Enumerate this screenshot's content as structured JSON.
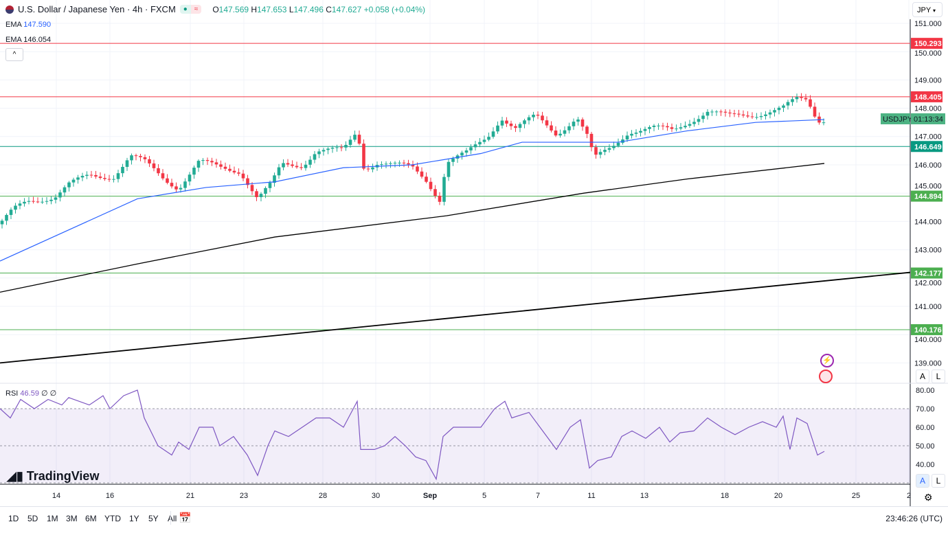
{
  "header": {
    "title": "U.S. Dollar / Japanese Yen · 4h · FXCM",
    "open_label": "O",
    "open": "147.569",
    "high_label": "H",
    "high": "147.653",
    "low_label": "L",
    "low": "147.496",
    "close_label": "C",
    "close": "147.627",
    "change": "+0.058 (+0.04%)",
    "badge_icon": "≈"
  },
  "indicators": [
    {
      "label": "EMA",
      "value": "147.590",
      "color": "#2962ff"
    },
    {
      "label": "EMA",
      "value": "146.054",
      "color": "#000000"
    }
  ],
  "currency_select": "JPY",
  "price_axis": {
    "ticks": [
      "151.000",
      "150.000",
      "149.000",
      "148.000",
      "147.000",
      "146.000",
      "145.000",
      "144.000",
      "143.000",
      "142.000",
      "141.000",
      "140.000",
      "139.000"
    ],
    "tick_values": [
      151,
      150,
      149,
      148,
      147,
      146,
      145,
      144,
      143,
      142,
      141,
      140,
      139
    ]
  },
  "levels": [
    {
      "value": 150.293,
      "label": "150.293",
      "color": "#f23645"
    },
    {
      "value": 148.405,
      "label": "148.405",
      "color": "#f23645"
    },
    {
      "value": 146.649,
      "label": "146.649",
      "color": "#089981"
    },
    {
      "value": 144.894,
      "label": "144.894",
      "color": "#4caf50"
    },
    {
      "value": 142.177,
      "label": "142.177",
      "color": "#4caf50"
    },
    {
      "value": 140.176,
      "label": "140.176",
      "color": "#4caf50"
    }
  ],
  "symbol_label": {
    "symbol": "USDJPY",
    "countdown": "01:13:34"
  },
  "price_path": [
    [
      0,
      143.9
    ],
    [
      20,
      144.4
    ],
    [
      40,
      144.7
    ],
    [
      80,
      144.9
    ],
    [
      100,
      145.3
    ],
    [
      130,
      145.6
    ],
    [
      165,
      145.6
    ],
    [
      190,
      146.3
    ],
    [
      210,
      146.1
    ],
    [
      240,
      145.5
    ],
    [
      260,
      145.2
    ],
    [
      290,
      146.1
    ],
    [
      320,
      145.9
    ],
    [
      350,
      145.8
    ],
    [
      375,
      144.8
    ],
    [
      395,
      145.3
    ],
    [
      410,
      146.0
    ],
    [
      440,
      146.0
    ],
    [
      460,
      146.5
    ],
    [
      500,
      146.5
    ],
    [
      520,
      147.2
    ],
    [
      530,
      145.9
    ],
    [
      550,
      146.1
    ],
    [
      570,
      146.0
    ],
    [
      600,
      145.9
    ],
    [
      620,
      145.5
    ],
    [
      640,
      144.8
    ],
    [
      650,
      146.1
    ],
    [
      680,
      146.4
    ],
    [
      710,
      147.0
    ],
    [
      730,
      147.7
    ],
    [
      750,
      147.3
    ],
    [
      780,
      147.7
    ],
    [
      810,
      147.1
    ],
    [
      840,
      147.7
    ],
    [
      855,
      147.0
    ],
    [
      865,
      146.2
    ],
    [
      890,
      146.6
    ],
    [
      915,
      147.2
    ],
    [
      950,
      147.3
    ],
    [
      980,
      147.2
    ],
    [
      1000,
      147.5
    ],
    [
      1030,
      147.9
    ],
    [
      1060,
      147.7
    ],
    [
      1100,
      147.8
    ],
    [
      1140,
      148.0
    ],
    [
      1160,
      148.3
    ],
    [
      1175,
      148.3
    ],
    [
      1190,
      147.6
    ],
    [
      1203,
      147.63
    ]
  ],
  "ema50": [
    [
      0,
      142.6
    ],
    [
      200,
      144.8
    ],
    [
      300,
      145.2
    ],
    [
      400,
      145.4
    ],
    [
      500,
      145.9
    ],
    [
      600,
      146.0
    ],
    [
      700,
      146.4
    ],
    [
      760,
      146.8
    ],
    [
      850,
      146.8
    ],
    [
      900,
      146.8
    ],
    [
      1000,
      147.2
    ],
    [
      1100,
      147.5
    ],
    [
      1200,
      147.6
    ]
  ],
  "ema200": [
    [
      0,
      141.5
    ],
    [
      200,
      142.5
    ],
    [
      400,
      143.45
    ],
    [
      650,
      144.2
    ],
    [
      850,
      145.0
    ],
    [
      1000,
      145.5
    ],
    [
      1200,
      146.05
    ]
  ],
  "trendline": [
    [
      0,
      139.0
    ],
    [
      1325,
      142.2
    ]
  ],
  "rsi": {
    "label": "RSI",
    "value": "46.59",
    "extra": "∅ ∅",
    "ticks": [
      "80.00",
      "70.00",
      "60.00",
      "50.00",
      "40.00"
    ],
    "tick_values": [
      80,
      70,
      60,
      50,
      40
    ],
    "upper": 70,
    "lower": 30,
    "path": [
      [
        0,
        70
      ],
      [
        15,
        65
      ],
      [
        30,
        75
      ],
      [
        50,
        70
      ],
      [
        70,
        75
      ],
      [
        90,
        72
      ],
      [
        100,
        76
      ],
      [
        130,
        72
      ],
      [
        150,
        77
      ],
      [
        160,
        70
      ],
      [
        180,
        77
      ],
      [
        200,
        80
      ],
      [
        210,
        65
      ],
      [
        230,
        50
      ],
      [
        250,
        45
      ],
      [
        260,
        52
      ],
      [
        275,
        48
      ],
      [
        290,
        60
      ],
      [
        310,
        60
      ],
      [
        320,
        50
      ],
      [
        340,
        55
      ],
      [
        360,
        45
      ],
      [
        375,
        34
      ],
      [
        390,
        50
      ],
      [
        400,
        58
      ],
      [
        420,
        55
      ],
      [
        440,
        60
      ],
      [
        460,
        65
      ],
      [
        480,
        65
      ],
      [
        500,
        60
      ],
      [
        520,
        74
      ],
      [
        525,
        48
      ],
      [
        545,
        48
      ],
      [
        560,
        50
      ],
      [
        575,
        55
      ],
      [
        590,
        50
      ],
      [
        605,
        44
      ],
      [
        620,
        42
      ],
      [
        635,
        32
      ],
      [
        645,
        55
      ],
      [
        660,
        60
      ],
      [
        700,
        60
      ],
      [
        720,
        70
      ],
      [
        735,
        74
      ],
      [
        745,
        65
      ],
      [
        770,
        68
      ],
      [
        790,
        58
      ],
      [
        810,
        48
      ],
      [
        830,
        60
      ],
      [
        845,
        64
      ],
      [
        858,
        38
      ],
      [
        870,
        42
      ],
      [
        890,
        44
      ],
      [
        905,
        55
      ],
      [
        920,
        58
      ],
      [
        940,
        54
      ],
      [
        960,
        60
      ],
      [
        975,
        52
      ],
      [
        990,
        57
      ],
      [
        1010,
        58
      ],
      [
        1030,
        65
      ],
      [
        1050,
        60
      ],
      [
        1070,
        56
      ],
      [
        1090,
        60
      ],
      [
        1110,
        63
      ],
      [
        1130,
        60
      ],
      [
        1140,
        66
      ],
      [
        1150,
        48
      ],
      [
        1160,
        65
      ],
      [
        1175,
        62
      ],
      [
        1190,
        45
      ],
      [
        1200,
        47
      ]
    ]
  },
  "time_axis": [
    "14",
    "16",
    "21",
    "23",
    "28",
    "30",
    "Sep",
    "5",
    "7",
    "11",
    "13",
    "18",
    "20",
    "25",
    "2"
  ],
  "ranges": [
    "1D",
    "5D",
    "1M",
    "3M",
    "6M",
    "YTD",
    "1Y",
    "5Y",
    "All"
  ],
  "clock": "23:46:26 (UTC)",
  "scale_buttons": {
    "auto": "A",
    "log": "L"
  },
  "watermark": "TradingView"
}
